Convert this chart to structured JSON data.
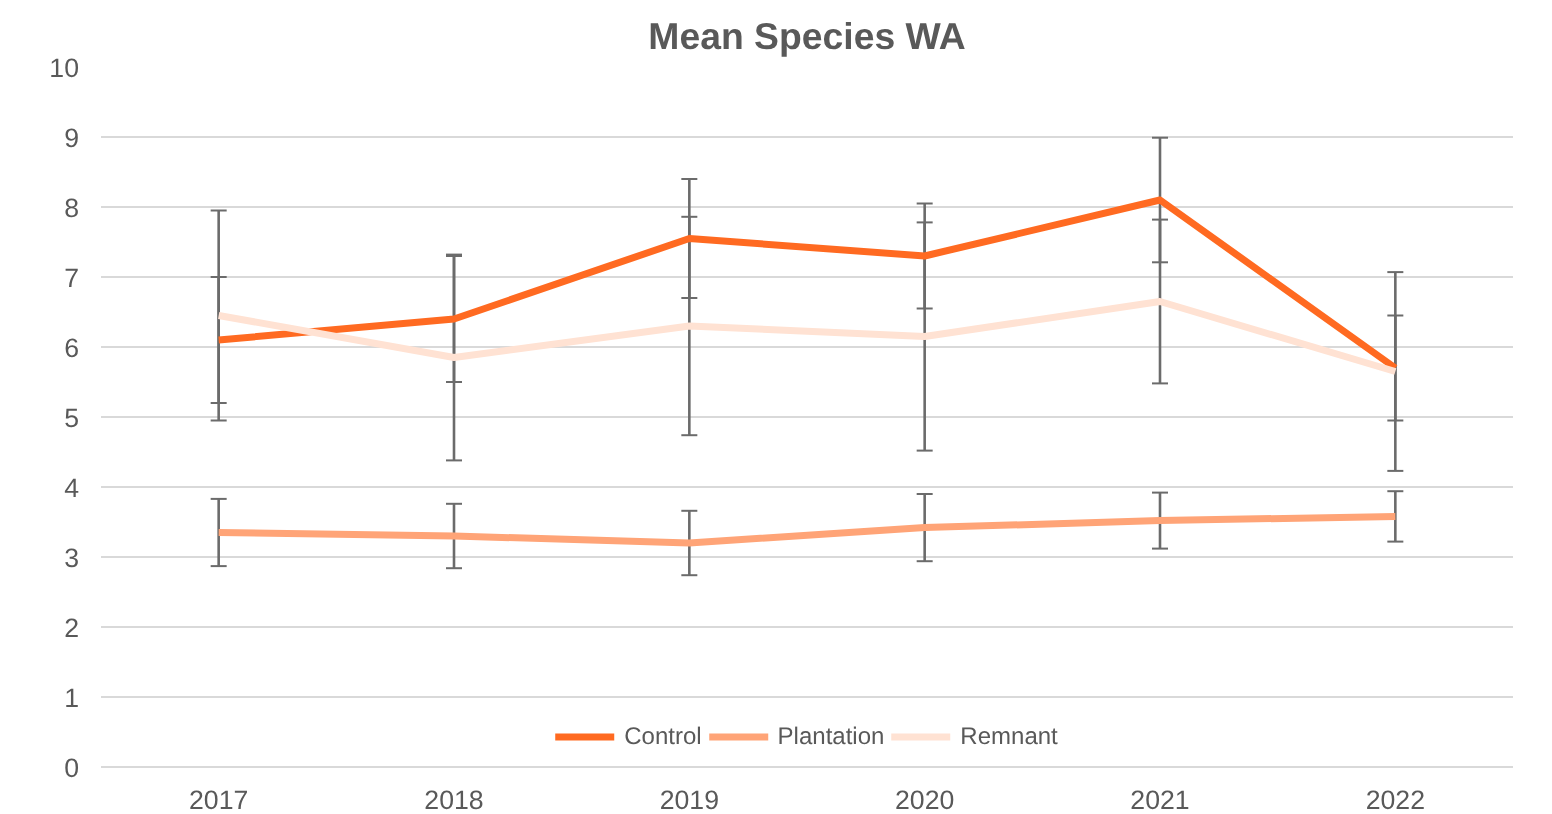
{
  "chart_data": {
    "type": "line",
    "title": "Mean Species WA",
    "categories": [
      "2017",
      "2018",
      "2019",
      "2020",
      "2021",
      "2022"
    ],
    "series": [
      {
        "name": "Control",
        "color": "#ff6a21",
        "values": [
          6.1,
          6.4,
          7.55,
          7.3,
          8.1,
          5.7
        ],
        "errors": [
          0.9,
          0.9,
          0.85,
          0.75,
          0.89,
          0.75
        ]
      },
      {
        "name": "Plantation",
        "color": "#ffa477",
        "values": [
          3.35,
          3.3,
          3.2,
          3.42,
          3.52,
          3.58
        ],
        "errors": [
          0.48,
          0.46,
          0.46,
          0.48,
          0.4,
          0.36
        ]
      },
      {
        "name": "Remnant",
        "color": "#ffe2d3",
        "values": [
          6.45,
          5.85,
          6.3,
          6.15,
          6.65,
          5.65
        ],
        "errors": [
          1.5,
          1.47,
          1.56,
          1.63,
          1.17,
          1.42
        ]
      }
    ],
    "ylim": [
      0,
      10
    ],
    "yticks": [
      0,
      1,
      2,
      3,
      4,
      5,
      6,
      7,
      8,
      9,
      10
    ],
    "grid": "y",
    "legend": "bottom",
    "marker": "none",
    "line_style": "solid"
  }
}
